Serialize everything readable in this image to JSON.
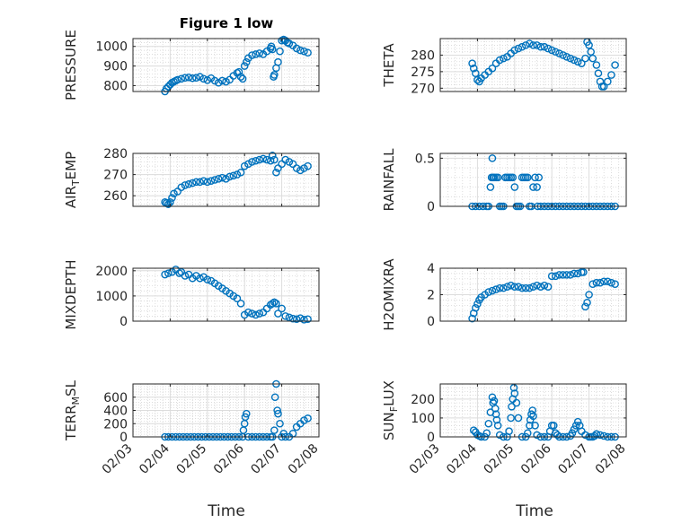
{
  "figure": {
    "title": "Figure 1 low"
  },
  "chart_data": [
    {
      "type": "scatter",
      "ylabel": "PRESSURE",
      "ylim": [
        770,
        1040
      ],
      "yticks": [
        800,
        900,
        1000
      ],
      "x": [
        3.86,
        3.9,
        3.95,
        4.0,
        4.05,
        4.1,
        4.15,
        4.2,
        4.3,
        4.4,
        4.5,
        4.6,
        4.7,
        4.8,
        4.9,
        5.0,
        5.1,
        5.2,
        5.3,
        5.4,
        5.5,
        5.6,
        5.7,
        5.8,
        5.85,
        5.9,
        5.95,
        6.0,
        6.05,
        6.1,
        6.2,
        6.3,
        6.4,
        6.5,
        6.6,
        6.7,
        6.72,
        6.75,
        6.78,
        6.8,
        6.85,
        6.9,
        6.95,
        7.0,
        7.05,
        7.1,
        7.15,
        7.2,
        7.3,
        7.4,
        7.5,
        7.6,
        7.7
      ],
      "y": [
        770,
        785,
        795,
        805,
        815,
        820,
        825,
        830,
        835,
        840,
        842,
        838,
        840,
        845,
        835,
        828,
        838,
        825,
        815,
        825,
        820,
        830,
        850,
        865,
        870,
        845,
        835,
        900,
        920,
        940,
        955,
        960,
        965,
        960,
        975,
        990,
        1000,
        985,
        845,
        855,
        890,
        920,
        975,
        1030,
        1035,
        1030,
        1020,
        1015,
        1005,
        990,
        980,
        975,
        968
      ],
      "grid": true
    },
    {
      "type": "scatter",
      "ylabel": "THETA",
      "ylim": [
        269,
        285
      ],
      "yticks": [
        270,
        275,
        280
      ],
      "x": [
        3.86,
        3.9,
        3.95,
        4.0,
        4.05,
        4.1,
        4.2,
        4.3,
        4.4,
        4.5,
        4.6,
        4.7,
        4.8,
        4.9,
        5.0,
        5.1,
        5.2,
        5.3,
        5.4,
        5.5,
        5.6,
        5.7,
        5.8,
        5.9,
        6.0,
        6.1,
        6.2,
        6.3,
        6.4,
        6.5,
        6.6,
        6.7,
        6.8,
        6.9,
        6.95,
        7.0,
        7.05,
        7.1,
        7.2,
        7.25,
        7.3,
        7.35,
        7.4,
        7.5,
        7.6,
        7.7
      ],
      "y": [
        277.5,
        276,
        274.5,
        272.5,
        272,
        273,
        274,
        275,
        276,
        277.5,
        278.5,
        279,
        279.5,
        280.5,
        281.5,
        282,
        282.5,
        283,
        283.5,
        283,
        283,
        282.5,
        282.5,
        282,
        281.5,
        281,
        280.5,
        280,
        279.5,
        279,
        278.5,
        278,
        277.5,
        279,
        284,
        283,
        281,
        279,
        277,
        274.5,
        272,
        270.5,
        270.5,
        272,
        274,
        277
      ],
      "grid": true
    },
    {
      "type": "scatter",
      "ylabel": "AIR_TEMP",
      "ylim": [
        255,
        280
      ],
      "yticks": [
        260,
        270,
        280
      ],
      "x": [
        3.86,
        3.9,
        3.95,
        4.0,
        4.05,
        4.1,
        4.2,
        4.3,
        4.4,
        4.5,
        4.6,
        4.7,
        4.8,
        4.9,
        5.0,
        5.1,
        5.2,
        5.3,
        5.4,
        5.5,
        5.6,
        5.7,
        5.8,
        5.9,
        6.0,
        6.1,
        6.2,
        6.3,
        6.4,
        6.5,
        6.6,
        6.7,
        6.75,
        6.8,
        6.85,
        6.9,
        7.0,
        7.1,
        7.2,
        7.3,
        7.4,
        7.5,
        7.6,
        7.7
      ],
      "y": [
        257,
        256.5,
        256,
        257,
        259,
        261,
        262,
        264,
        265,
        265.5,
        266,
        266.5,
        266.5,
        267,
        266.5,
        267,
        267.5,
        268,
        268.5,
        268,
        269,
        269.5,
        270,
        271,
        274,
        275,
        276,
        276.5,
        277,
        277.5,
        277,
        276.5,
        279,
        277,
        271,
        273,
        275,
        277,
        276,
        275,
        273,
        272,
        273,
        274
      ],
      "grid": true
    },
    {
      "type": "scatter",
      "ylabel": "RAINFALL",
      "ylim": [
        0,
        0.55
      ],
      "yticks": [
        0,
        0.5
      ],
      "x": [
        3.86,
        3.95,
        4.05,
        4.15,
        4.25,
        4.3,
        4.35,
        4.38,
        4.4,
        4.42,
        4.45,
        4.5,
        4.55,
        4.6,
        4.65,
        4.7,
        4.75,
        4.8,
        4.85,
        4.9,
        4.95,
        5.0,
        5.05,
        5.1,
        5.15,
        5.2,
        5.25,
        5.3,
        5.35,
        5.4,
        5.45,
        5.5,
        5.55,
        5.6,
        5.62,
        5.65,
        5.7,
        5.8,
        5.9,
        6.0,
        6.1,
        6.2,
        6.3,
        6.4,
        6.5,
        6.6,
        6.7,
        6.8,
        6.9,
        7.0,
        7.1,
        7.2,
        7.3,
        7.4,
        7.5,
        7.6,
        7.7
      ],
      "y": [
        0,
        0,
        0,
        0,
        0,
        0,
        0.2,
        0.3,
        0.5,
        0.3,
        0.3,
        0.3,
        0.3,
        0,
        0,
        0,
        0.3,
        0.3,
        0.3,
        0.3,
        0.3,
        0.2,
        0,
        0,
        0,
        0.3,
        0.3,
        0.3,
        0.3,
        0,
        0,
        0.2,
        0.3,
        0.2,
        0,
        0.3,
        0,
        0,
        0,
        0,
        0,
        0,
        0,
        0,
        0,
        0,
        0,
        0,
        0,
        0,
        0,
        0,
        0,
        0,
        0,
        0,
        0
      ],
      "grid": true
    },
    {
      "type": "scatter",
      "ylabel": "MIXDEPTH",
      "ylim": [
        0,
        2100
      ],
      "yticks": [
        0,
        1000,
        2000
      ],
      "x": [
        3.86,
        3.95,
        4.05,
        4.15,
        4.25,
        4.3,
        4.4,
        4.5,
        4.6,
        4.7,
        4.8,
        4.9,
        5.0,
        5.1,
        5.2,
        5.3,
        5.4,
        5.5,
        5.6,
        5.7,
        5.8,
        5.9,
        6.0,
        6.1,
        6.2,
        6.3,
        6.4,
        6.5,
        6.6,
        6.7,
        6.75,
        6.8,
        6.85,
        6.9,
        7.0,
        7.1,
        7.2,
        7.3,
        7.4,
        7.5,
        7.6,
        7.7
      ],
      "y": [
        1850,
        1900,
        1950,
        2050,
        1900,
        1950,
        1800,
        1850,
        1700,
        1800,
        1700,
        1750,
        1650,
        1600,
        1500,
        1400,
        1300,
        1200,
        1100,
        1000,
        900,
        700,
        250,
        350,
        300,
        250,
        300,
        350,
        500,
        650,
        700,
        750,
        700,
        300,
        500,
        200,
        150,
        100,
        80,
        120,
        60,
        80
      ],
      "grid": true
    },
    {
      "type": "scatter",
      "ylabel": "H2OMIXRA",
      "ylim": [
        0,
        4
      ],
      "yticks": [
        0,
        2,
        4
      ],
      "x": [
        3.86,
        3.9,
        3.95,
        4.0,
        4.05,
        4.1,
        4.2,
        4.3,
        4.4,
        4.5,
        4.6,
        4.7,
        4.8,
        4.9,
        5.0,
        5.1,
        5.2,
        5.3,
        5.4,
        5.5,
        5.6,
        5.7,
        5.8,
        5.9,
        6.0,
        6.1,
        6.2,
        6.3,
        6.4,
        6.5,
        6.6,
        6.7,
        6.8,
        6.85,
        6.9,
        6.95,
        7.0,
        7.1,
        7.2,
        7.3,
        7.4,
        7.5,
        7.6,
        7.7
      ],
      "y": [
        0.2,
        0.6,
        1.0,
        1.3,
        1.6,
        1.8,
        2.0,
        2.2,
        2.3,
        2.4,
        2.5,
        2.5,
        2.6,
        2.7,
        2.6,
        2.6,
        2.5,
        2.5,
        2.5,
        2.6,
        2.7,
        2.6,
        2.7,
        2.6,
        3.4,
        3.4,
        3.5,
        3.5,
        3.5,
        3.5,
        3.6,
        3.6,
        3.7,
        3.7,
        1.1,
        1.4,
        2.0,
        2.8,
        2.9,
        2.9,
        3.0,
        3.0,
        2.9,
        2.8
      ],
      "grid": true
    },
    {
      "type": "scatter",
      "ylabel": "TERR_MSL",
      "ylim": [
        0,
        800
      ],
      "yticks": [
        0,
        200,
        400,
        600
      ],
      "x": [
        3.86,
        3.95,
        4.05,
        4.15,
        4.25,
        4.35,
        4.45,
        4.55,
        4.65,
        4.75,
        4.85,
        4.95,
        5.05,
        5.15,
        5.25,
        5.35,
        5.45,
        5.55,
        5.65,
        5.75,
        5.85,
        5.95,
        5.97,
        6.0,
        6.02,
        6.05,
        6.1,
        6.2,
        6.3,
        6.4,
        6.5,
        6.6,
        6.7,
        6.75,
        6.8,
        6.82,
        6.85,
        6.88,
        6.9,
        6.95,
        7.0,
        7.05,
        7.1,
        7.2,
        7.3,
        7.4,
        7.5,
        7.6,
        7.7
      ],
      "y": [
        0,
        0,
        0,
        0,
        0,
        0,
        0,
        0,
        0,
        0,
        0,
        0,
        0,
        0,
        0,
        0,
        0,
        0,
        0,
        0,
        0,
        0,
        100,
        200,
        300,
        350,
        0,
        0,
        0,
        0,
        0,
        0,
        0,
        0,
        100,
        600,
        800,
        400,
        350,
        200,
        0,
        50,
        0,
        0,
        50,
        150,
        200,
        250,
        280
      ],
      "grid": true
    },
    {
      "type": "scatter",
      "ylabel": "SUN_FLUX",
      "ylim": [
        0,
        280
      ],
      "yticks": [
        0,
        100,
        200
      ],
      "x": [
        3.9,
        3.95,
        4.0,
        4.05,
        4.1,
        4.2,
        4.25,
        4.3,
        4.35,
        4.4,
        4.42,
        4.45,
        4.48,
        4.5,
        4.52,
        4.55,
        4.6,
        4.7,
        4.8,
        4.85,
        4.9,
        4.92,
        4.95,
        4.98,
        5.0,
        5.05,
        5.1,
        5.2,
        5.3,
        5.35,
        5.4,
        5.42,
        5.45,
        5.48,
        5.5,
        5.55,
        5.6,
        5.7,
        5.8,
        5.9,
        5.95,
        6.0,
        6.05,
        6.1,
        6.15,
        6.2,
        6.3,
        6.4,
        6.5,
        6.55,
        6.6,
        6.65,
        6.7,
        6.75,
        6.8,
        6.9,
        7.0,
        7.05,
        7.1,
        7.15,
        7.2,
        7.3,
        7.4,
        7.5,
        7.6,
        7.7
      ],
      "y": [
        35,
        25,
        10,
        5,
        0,
        0,
        20,
        70,
        130,
        210,
        180,
        190,
        150,
        120,
        90,
        60,
        10,
        0,
        0,
        30,
        100,
        160,
        200,
        260,
        230,
        180,
        100,
        0,
        0,
        20,
        60,
        90,
        120,
        140,
        110,
        60,
        10,
        0,
        0,
        0,
        30,
        60,
        60,
        20,
        10,
        0,
        0,
        0,
        5,
        20,
        40,
        60,
        80,
        60,
        30,
        10,
        0,
        0,
        0,
        5,
        15,
        10,
        5,
        0,
        0,
        0
      ],
      "grid": true
    }
  ],
  "axes": {
    "xlabel": "Time",
    "xticks": [
      "02/03",
      "02/04",
      "02/05",
      "02/06",
      "02/07",
      "02/08"
    ],
    "xlim": [
      3,
      8
    ]
  }
}
